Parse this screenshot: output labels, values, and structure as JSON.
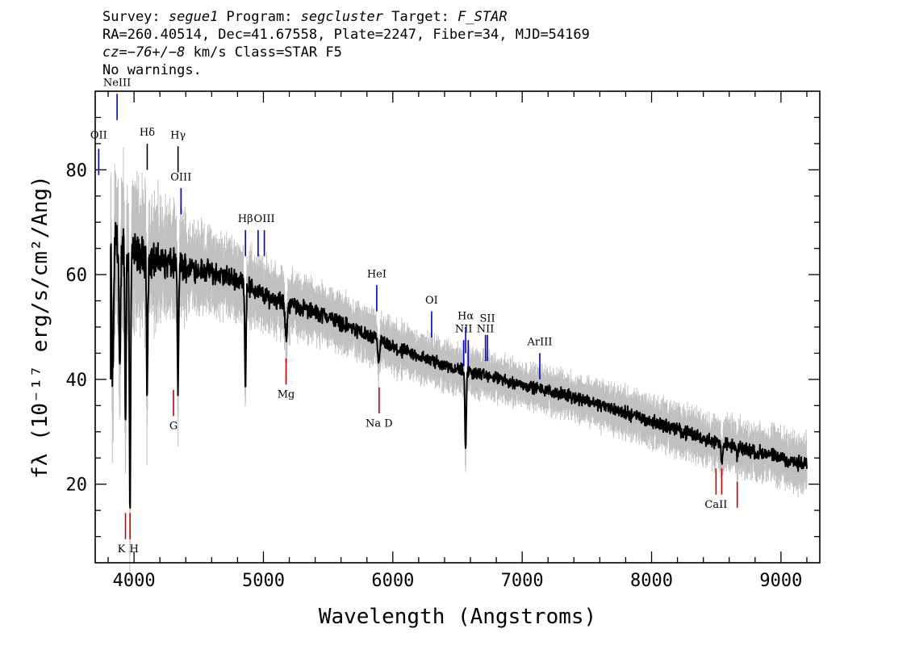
{
  "header": {
    "line1_a": "Survey: ",
    "survey": "segue1",
    "line1_b": " Program: ",
    "program": "segcluster",
    "line1_c": " Target: ",
    "target": "F_STAR",
    "line2": "RA=260.40514, Dec=41.67558, Plate=2247, Fiber=34, MJD=54169",
    "line3_cz": "cz=",
    "line3_val": "−76+/−8",
    "line3_rest": " km/s Class=STAR F5",
    "line4": "No warnings."
  },
  "chart_data": {
    "type": "line",
    "xlabel": "Wavelength (Angstroms)",
    "ylabel": "fλ (10⁻¹⁷ erg/s/cm²/Ang)",
    "xlim": [
      3700,
      9300
    ],
    "ylim": [
      5,
      95
    ],
    "xticks": [
      4000,
      5000,
      6000,
      7000,
      8000,
      9000
    ],
    "xtick_labels": [
      "4000",
      "5000",
      "6000",
      "7000",
      "8000",
      "9000"
    ],
    "yticks": [
      20,
      40,
      60,
      80
    ],
    "ytick_labels": [
      "20",
      "40",
      "60",
      "80"
    ],
    "series_colors": {
      "flux": "#000000",
      "error": "#c0c0c0",
      "emission": "#0000cc",
      "absorption": "#cc0000",
      "neutral": "#000000"
    },
    "continuum": [
      [
        3820,
        68
      ],
      [
        3900,
        66
      ],
      [
        4000,
        64
      ],
      [
        4200,
        62.5
      ],
      [
        4500,
        61
      ],
      [
        4800,
        59
      ],
      [
        5000,
        56
      ],
      [
        5500,
        52
      ],
      [
        6000,
        46
      ],
      [
        6500,
        42
      ],
      [
        7000,
        39
      ],
      [
        7500,
        36
      ],
      [
        8000,
        32
      ],
      [
        8500,
        28
      ],
      [
        9000,
        25
      ],
      [
        9200,
        23.5
      ]
    ],
    "absorption_features": [
      [
        3835,
        40,
        12
      ],
      [
        3890,
        40,
        10
      ],
      [
        3934,
        32,
        8
      ],
      [
        3969,
        15,
        8
      ],
      [
        4102,
        38,
        8
      ],
      [
        4340,
        38,
        8
      ],
      [
        4861,
        39,
        8
      ],
      [
        5175,
        48,
        14
      ],
      [
        5890,
        43,
        10
      ],
      [
        6563,
        26,
        8
      ],
      [
        8542,
        24,
        8
      ],
      [
        8662,
        25,
        8
      ]
    ],
    "error_band_halfwidth": [
      [
        3820,
        12
      ],
      [
        4500,
        6
      ],
      [
        5500,
        4
      ],
      [
        7000,
        3
      ],
      [
        9200,
        4
      ]
    ],
    "line_markers": [
      {
        "label": "OII",
        "wave": 3727,
        "y1": 79,
        "y2": 84,
        "color": "emission",
        "label_y": 86
      },
      {
        "label": "NeIII",
        "wave": 3869,
        "y1": 89.5,
        "y2": 94.5,
        "color": "emission",
        "label_y": 96
      },
      {
        "label": "Hδ",
        "wave": 4102,
        "y1": 80,
        "y2": 85,
        "color": "neutral",
        "label_y": 86.5
      },
      {
        "label": "Hγ",
        "wave": 4340,
        "y1": 79.5,
        "y2": 84.5,
        "color": "neutral",
        "label_y": 86
      },
      {
        "label": "OIII",
        "wave": 4363,
        "y1": 71.5,
        "y2": 76.5,
        "color": "emission",
        "label_y": 78
      },
      {
        "label": "Hβ",
        "wave": 4861,
        "y1": 63.5,
        "y2": 68.5,
        "color": "emission",
        "label_y": 70
      },
      {
        "label": "OIII",
        "wave": 4959,
        "y1": 63.5,
        "y2": 68.5,
        "color": "emission",
        "label_y": null
      },
      {
        "label": "OIII",
        "wave": 5007,
        "y1": 63.5,
        "y2": 68.5,
        "color": "emission",
        "label_y": 70
      },
      {
        "label": "HeI",
        "wave": 5876,
        "y1": 53,
        "y2": 58,
        "color": "emission",
        "label_y": 59.5
      },
      {
        "label": "OI",
        "wave": 6300,
        "y1": 48,
        "y2": 53,
        "color": "emission",
        "label_y": 54.5
      },
      {
        "label": "NII",
        "wave": 6548,
        "y1": 42.5,
        "y2": 47.5,
        "color": "emission",
        "label_y": 49
      },
      {
        "label": "Hα",
        "wave": 6563,
        "y1": 45,
        "y2": 50,
        "color": "emission",
        "label_y": 51.5
      },
      {
        "label": "NII",
        "wave": 6583,
        "y1": 42.5,
        "y2": 47.5,
        "color": "emission",
        "label_y": null
      },
      {
        "label": "NII",
        "wave": 6716,
        "y1": 43.5,
        "y2": 48.5,
        "color": "emission",
        "label_y": 49
      },
      {
        "label": "SII",
        "wave": 6731,
        "y1": 43.5,
        "y2": 48.5,
        "color": "emission",
        "label_y": 51
      },
      {
        "label": "ArIII",
        "wave": 7136,
        "y1": 40,
        "y2": 45,
        "color": "emission",
        "label_y": 46.5
      },
      {
        "label": "K",
        "wave": 3934,
        "y1": 9.5,
        "y2": 14.5,
        "color": "absorption",
        "label_y": 7
      },
      {
        "label": "H",
        "wave": 3969,
        "y1": 9.5,
        "y2": 14.5,
        "color": "absorption",
        "label_y": 7
      },
      {
        "label": "G",
        "wave": 4305,
        "y1": 33,
        "y2": 38,
        "color": "absorption",
        "label_y": 30.5
      },
      {
        "label": "Mg",
        "wave": 5175,
        "y1": 39,
        "y2": 44,
        "color": "absorption",
        "label_y": 36.5
      },
      {
        "label": "Na D",
        "wave": 5894,
        "y1": 33.5,
        "y2": 38.5,
        "color": "absorption",
        "label_y": 31
      },
      {
        "label": "CaII",
        "wave": 8498,
        "y1": 18,
        "y2": 23,
        "color": "absorption",
        "label_y": 15.5
      },
      {
        "label": "CaII",
        "wave": 8542,
        "y1": 18,
        "y2": 23,
        "color": "absorption",
        "label_y": null
      },
      {
        "label": "CaII",
        "wave": 8662,
        "y1": 15.5,
        "y2": 20.5,
        "color": "absorption",
        "label_y": null
      }
    ]
  }
}
